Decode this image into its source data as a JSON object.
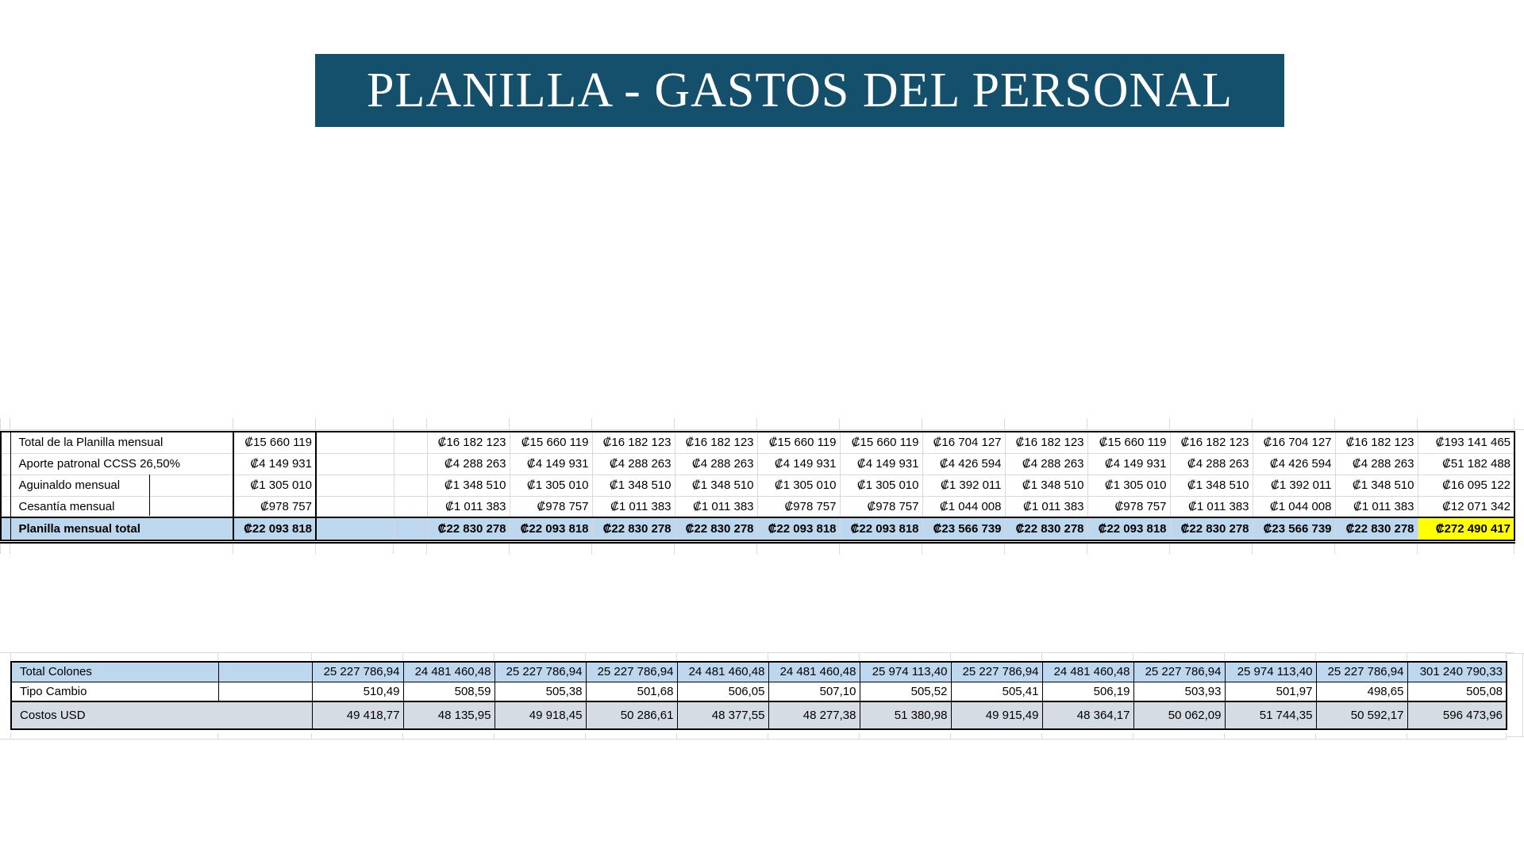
{
  "banner": {
    "title": "PLANILLA - GASTOS DEL PERSONAL",
    "background": "#14506B",
    "text_color": "#FFFFFF"
  },
  "colors": {
    "highlight_blue": "#BDD7EE",
    "highlight_gray": "#D6DCE4",
    "highlight_yellow": "#FFFF00"
  },
  "payroll_table": {
    "rows": [
      {
        "label": "Total de la Planilla mensual",
        "base": "₡15 660 119",
        "months": [
          "₡16 182 123",
          "₡15 660 119",
          "₡16 182 123",
          "₡16 182 123",
          "₡15 660 119",
          "₡15 660 119",
          "₡16 704 127",
          "₡16 182 123",
          "₡15 660 119",
          "₡16 182 123",
          "₡16 704 127",
          "₡16 182 123"
        ],
        "total": "₡193 141 465",
        "style": "normal"
      },
      {
        "label": "Aporte patronal CCSS 26,50%",
        "base": "₡4 149 931",
        "months": [
          "₡4 288 263",
          "₡4 149 931",
          "₡4 288 263",
          "₡4 288 263",
          "₡4 149 931",
          "₡4 149 931",
          "₡4 426 594",
          "₡4 288 263",
          "₡4 149 931",
          "₡4 288 263",
          "₡4 426 594",
          "₡4 288 263"
        ],
        "total": "₡51 182 488",
        "style": "normal"
      },
      {
        "label": "Aguinaldo mensual",
        "base": "₡1 305 010",
        "months": [
          "₡1 348 510",
          "₡1 305 010",
          "₡1 348 510",
          "₡1 348 510",
          "₡1 305 010",
          "₡1 305 010",
          "₡1 392 011",
          "₡1 348 510",
          "₡1 305 010",
          "₡1 348 510",
          "₡1 392 011",
          "₡1 348 510"
        ],
        "total": "₡16 095 122",
        "style": "normal"
      },
      {
        "label": "Cesantía mensual",
        "base": "₡978 757",
        "months": [
          "₡1 011 383",
          "₡978 757",
          "₡1 011 383",
          "₡1 011 383",
          "₡978 757",
          "₡978 757",
          "₡1 044 008",
          "₡1 011 383",
          "₡978 757",
          "₡1 011 383",
          "₡1 044 008",
          "₡1 011 383"
        ],
        "total": "₡12 071 342",
        "style": "normal"
      },
      {
        "label": "Planilla mensual total",
        "base": "₡22 093 818",
        "months": [
          "₡22 830 278",
          "₡22 093 818",
          "₡22 830 278",
          "₡22 830 278",
          "₡22 093 818",
          "₡22 093 818",
          "₡23 566 739",
          "₡22 830 278",
          "₡22 093 818",
          "₡22 830 278",
          "₡23 566 739",
          "₡22 830 278"
        ],
        "total": "₡272 490 417",
        "style": "grand-total"
      }
    ]
  },
  "usd_table": {
    "rows": [
      {
        "label": "Total Colones",
        "values": [
          "25 227 786,94",
          "24 481 460,48",
          "25 227 786,94",
          "25 227 786,94",
          "24 481 460,48",
          "24 481 460,48",
          "25 974 113,40",
          "25 227 786,94",
          "24 481 460,48",
          "25 227 786,94",
          "25 974 113,40",
          "25 227 786,94"
        ],
        "total": "301 240 790,33",
        "style": "blue",
        "total_highlight": true,
        "merge_label": false
      },
      {
        "label": "Tipo Cambio",
        "values": [
          "510,49",
          "508,59",
          "505,38",
          "501,68",
          "506,05",
          "507,10",
          "505,52",
          "505,41",
          "506,19",
          "503,93",
          "501,97",
          "498,65"
        ],
        "total": "505,08",
        "style": "white",
        "total_highlight": false,
        "merge_label": false
      },
      {
        "label": "Costos USD",
        "values": [
          "49 418,77",
          "48 135,95",
          "49 918,45",
          "50 286,61",
          "48 377,55",
          "48 277,38",
          "51 380,98",
          "49 915,49",
          "48 364,17",
          "50 062,09",
          "51 744,35",
          "50 592,17"
        ],
        "total": "596 473,96",
        "style": "gray",
        "total_highlight": true,
        "merge_label": true
      }
    ]
  }
}
